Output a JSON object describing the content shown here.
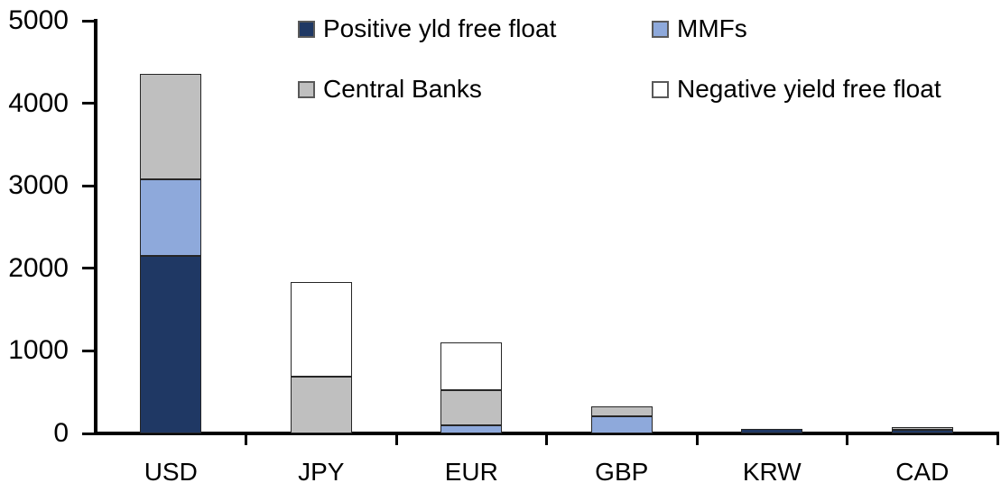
{
  "chart_data": {
    "type": "bar",
    "stacked": true,
    "title": "",
    "categories": [
      "USD",
      "JPY",
      "EUR",
      "GBP",
      "KRW",
      "CAD"
    ],
    "series": [
      {
        "name": "Positive yld free float",
        "color": "#1F3864",
        "values": [
          2150,
          0,
          0,
          0,
          60,
          40
        ]
      },
      {
        "name": "MMFs",
        "color": "#8EA9DB",
        "values": [
          930,
          0,
          100,
          210,
          0,
          0
        ]
      },
      {
        "name": "Central Banks",
        "color": "#BFBFBF",
        "values": [
          1280,
          690,
          420,
          120,
          0,
          35
        ]
      },
      {
        "name": "Negative yield free float",
        "color": "#FFFFFF",
        "values": [
          0,
          1140,
          580,
          0,
          0,
          0
        ]
      }
    ],
    "totals": [
      4360,
      1830,
      1100,
      330,
      60,
      75
    ],
    "y_axis": {
      "min": 0,
      "max": 5000,
      "tick_interval": 1000,
      "ticks": [
        0,
        1000,
        2000,
        3000,
        4000,
        5000
      ]
    },
    "xlabel": "",
    "ylabel": "",
    "grid": false,
    "legend_position": "top",
    "legend_order": [
      "Positive yld free float",
      "MMFs",
      "Central Banks",
      "Negative yield free float"
    ],
    "axis_color": "#000000",
    "bar_outline_color": "#262626"
  }
}
